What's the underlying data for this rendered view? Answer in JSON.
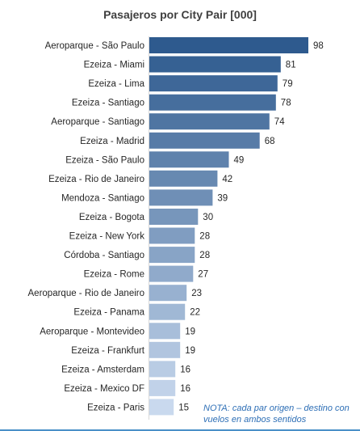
{
  "chart_data": {
    "type": "bar",
    "orientation": "horizontal",
    "title": "Pasajeros por City Pair [000]",
    "categories": [
      "Aeroparque - São Paulo",
      "Ezeiza - Miami",
      "Ezeiza - Lima",
      "Ezeiza - Santiago",
      "Aeroparque - Santiago",
      "Ezeiza - Madrid",
      "Ezeiza - São Paulo",
      "Ezeiza - Rio de Janeiro",
      "Mendoza - Santiago",
      "Ezeiza - Bogota",
      "Ezeiza - New York",
      "Córdoba - Santiago",
      "Ezeiza - Rome",
      "Aeroparque - Rio de Janeiro",
      "Ezeiza - Panama",
      "Aeroparque - Montevideo",
      "Ezeiza - Frankfurt",
      "Ezeiza - Amsterdam",
      "Ezeiza - Mexico DF",
      "Ezeiza - Paris"
    ],
    "values": [
      98,
      81,
      79,
      78,
      74,
      68,
      49,
      42,
      39,
      30,
      28,
      28,
      27,
      23,
      22,
      19,
      19,
      16,
      16,
      15
    ],
    "xlim": [
      0,
      98
    ],
    "grid": false,
    "legend": "none",
    "colors": {
      "darkest": "#2e5a8e",
      "lightest": "#c9d9ee"
    }
  },
  "note": {
    "line1": "NOTA: cada par origen – destino con",
    "line2": "vuelos en ambos sentidos"
  }
}
